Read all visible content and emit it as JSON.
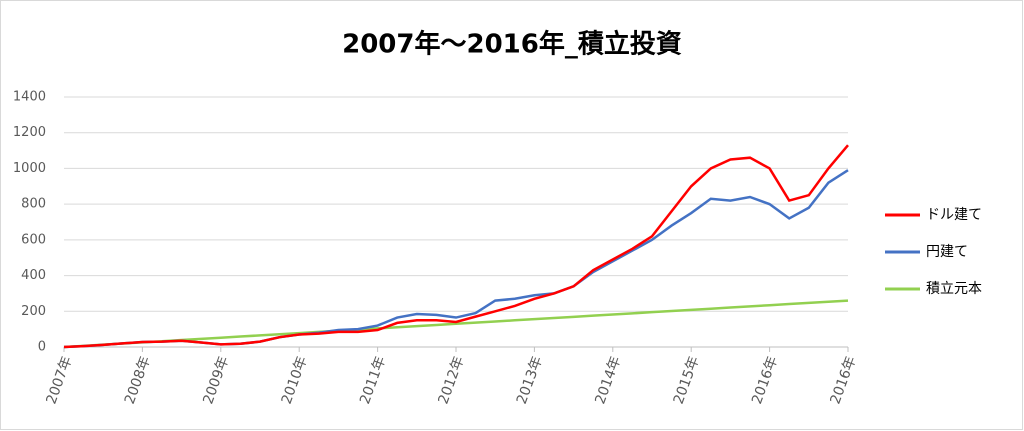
{
  "chart_data": {
    "type": "line",
    "title": "2007年～2016年_積立投資",
    "categories": [
      "2007年",
      null,
      null,
      null,
      "2008年",
      null,
      null,
      null,
      "2009年",
      null,
      null,
      null,
      "2010年",
      null,
      null,
      null,
      "2011年",
      null,
      null,
      null,
      "2012年",
      null,
      null,
      null,
      "2013年",
      null,
      null,
      null,
      "2014年",
      null,
      null,
      null,
      "2015年",
      null,
      null,
      null,
      "2016年",
      null,
      null,
      null,
      "2016年"
    ],
    "series": [
      {
        "name": "ドル建て",
        "color": "#ff0000",
        "values": [
          0,
          5,
          12,
          20,
          28,
          30,
          35,
          25,
          15,
          18,
          30,
          55,
          70,
          75,
          85,
          85,
          95,
          135,
          150,
          150,
          140,
          170,
          200,
          230,
          270,
          300,
          340,
          430,
          490,
          550,
          620,
          760,
          900,
          1000,
          1050,
          1060,
          1000,
          820,
          850,
          1000,
          1130
        ]
      },
      {
        "name": "円建て",
        "color": "#4472c4",
        "values": [
          0,
          5,
          12,
          20,
          28,
          30,
          35,
          25,
          15,
          18,
          30,
          55,
          70,
          80,
          95,
          100,
          120,
          165,
          185,
          180,
          165,
          190,
          260,
          270,
          290,
          300,
          340,
          420,
          480,
          540,
          600,
          680,
          750,
          830,
          820,
          840,
          800,
          720,
          780,
          920,
          990
        ]
      },
      {
        "name": "積立元本",
        "color": "#92d050",
        "values": [
          0,
          6.5,
          13,
          19.5,
          26,
          32.5,
          39,
          45.5,
          52,
          58.5,
          65,
          71.5,
          78,
          84.5,
          91,
          97.5,
          104,
          110.5,
          117,
          123.5,
          130,
          136.5,
          143,
          149.5,
          156,
          162.5,
          169,
          175.5,
          182,
          188.5,
          195,
          201.5,
          208,
          214.5,
          221,
          227.5,
          234,
          240.5,
          247,
          253.5,
          260
        ]
      }
    ],
    "ylim": [
      0,
      1400
    ],
    "yticks": [
      0,
      200,
      400,
      600,
      800,
      1000,
      1200,
      1400
    ],
    "grid": true,
    "legend": "right"
  }
}
